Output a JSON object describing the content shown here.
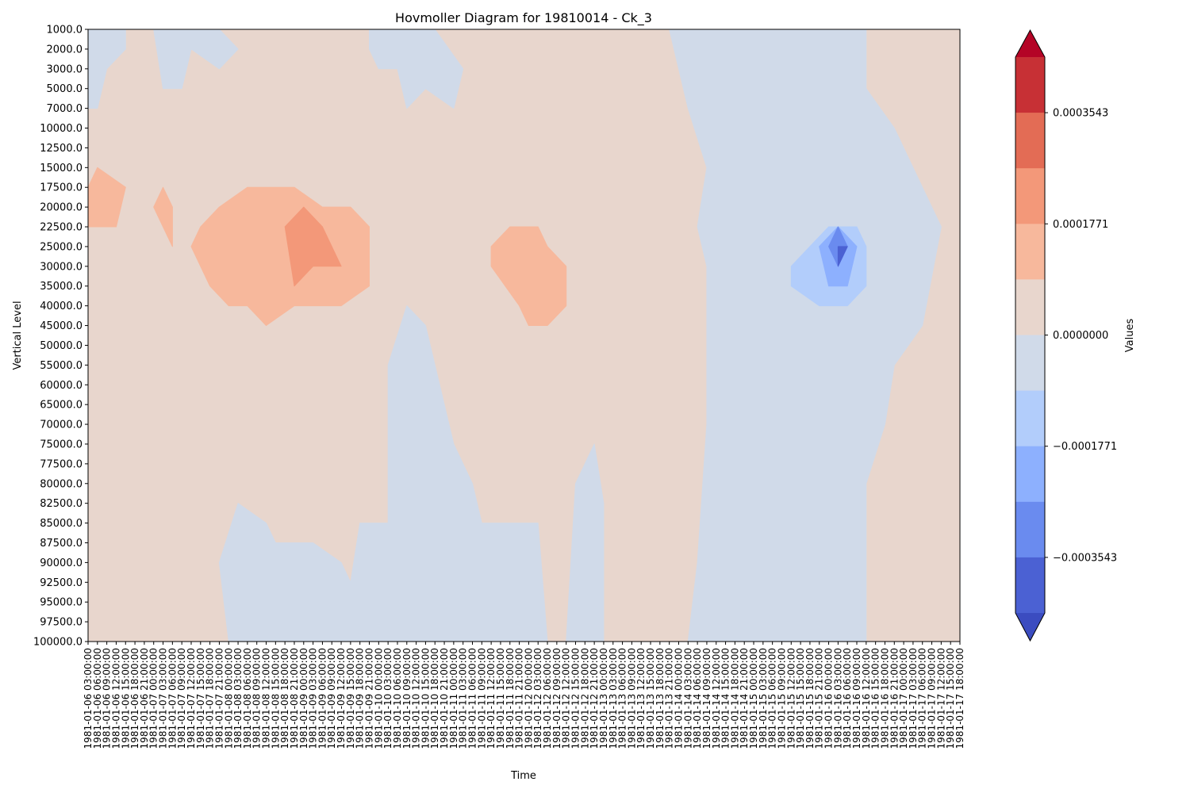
{
  "chart_data": {
    "type": "heatmap",
    "subtype": "filled-contour",
    "title": "Hovmoller Diagram for 19810014 - Ck_3",
    "xlabel": "Time",
    "ylabel": "Vertical Level",
    "y_inverted": true,
    "y_levels": [
      "1000.0",
      "2000.0",
      "3000.0",
      "5000.0",
      "7000.0",
      "10000.0",
      "12500.0",
      "15000.0",
      "17500.0",
      "20000.0",
      "22500.0",
      "25000.0",
      "30000.0",
      "35000.0",
      "40000.0",
      "45000.0",
      "50000.0",
      "55000.0",
      "60000.0",
      "65000.0",
      "70000.0",
      "75000.0",
      "77500.0",
      "80000.0",
      "82500.0",
      "85000.0",
      "87500.0",
      "90000.0",
      "92500.0",
      "95000.0",
      "97500.0",
      "100000.0"
    ],
    "x_time_labels": [
      "1981-01-06 03:00:00",
      "1981-01-06 06:00:00",
      "1981-01-06 09:00:00",
      "1981-01-06 12:00:00",
      "1981-01-06 15:00:00",
      "1981-01-06 18:00:00",
      "1981-01-06 21:00:00",
      "1981-01-07 00:00:00",
      "1981-01-07 03:00:00",
      "1981-01-07 06:00:00",
      "1981-01-07 09:00:00",
      "1981-01-07 12:00:00",
      "1981-01-07 15:00:00",
      "1981-01-07 18:00:00",
      "1981-01-07 21:00:00",
      "1981-01-08 00:00:00",
      "1981-01-08 03:00:00",
      "1981-01-08 06:00:00",
      "1981-01-08 09:00:00",
      "1981-01-08 12:00:00",
      "1981-01-08 15:00:00",
      "1981-01-08 18:00:00",
      "1981-01-08 21:00:00",
      "1981-01-09 00:00:00",
      "1981-01-09 03:00:00",
      "1981-01-09 06:00:00",
      "1981-01-09 09:00:00",
      "1981-01-09 12:00:00",
      "1981-01-09 15:00:00",
      "1981-01-09 18:00:00",
      "1981-01-09 21:00:00",
      "1981-01-10 00:00:00",
      "1981-01-10 03:00:00",
      "1981-01-10 06:00:00",
      "1981-01-10 09:00:00",
      "1981-01-10 12:00:00",
      "1981-01-10 15:00:00",
      "1981-01-10 18:00:00",
      "1981-01-10 21:00:00",
      "1981-01-11 00:00:00",
      "1981-01-11 03:00:00",
      "1981-01-11 06:00:00",
      "1981-01-11 09:00:00",
      "1981-01-11 12:00:00",
      "1981-01-11 15:00:00",
      "1981-01-11 18:00:00",
      "1981-01-11 21:00:00",
      "1981-01-12 00:00:00",
      "1981-01-12 03:00:00",
      "1981-01-12 06:00:00",
      "1981-01-12 09:00:00",
      "1981-01-12 12:00:00",
      "1981-01-12 15:00:00",
      "1981-01-12 18:00:00",
      "1981-01-12 21:00:00",
      "1981-01-13 00:00:00",
      "1981-01-13 03:00:00",
      "1981-01-13 06:00:00",
      "1981-01-13 09:00:00",
      "1981-01-13 12:00:00",
      "1981-01-13 15:00:00",
      "1981-01-13 18:00:00",
      "1981-01-13 21:00:00",
      "1981-01-14 00:00:00",
      "1981-01-14 03:00:00",
      "1981-01-14 06:00:00",
      "1981-01-14 09:00:00",
      "1981-01-14 12:00:00",
      "1981-01-14 15:00:00",
      "1981-01-14 18:00:00",
      "1981-01-14 21:00:00",
      "1981-01-15 00:00:00",
      "1981-01-15 03:00:00",
      "1981-01-15 06:00:00",
      "1981-01-15 09:00:00",
      "1981-01-15 12:00:00",
      "1981-01-15 15:00:00",
      "1981-01-15 18:00:00",
      "1981-01-15 21:00:00",
      "1981-01-16 00:00:00",
      "1981-01-16 03:00:00",
      "1981-01-16 06:00:00",
      "1981-01-16 09:00:00",
      "1981-01-16 12:00:00",
      "1981-01-16 15:00:00",
      "1981-01-16 18:00:00",
      "1981-01-16 21:00:00",
      "1981-01-17 00:00:00",
      "1981-01-17 03:00:00",
      "1981-01-17 06:00:00",
      "1981-01-17 09:00:00",
      "1981-01-17 12:00:00",
      "1981-01-17 15:00:00",
      "1981-01-17 18:00:00"
    ],
    "colorbar": {
      "label": "Values",
      "tick_labels": [
        "0.0003543",
        "0.0001771",
        "0.0000000",
        "−0.0001771",
        "−0.0003543"
      ],
      "tick_values": [
        0.0003543,
        0.0001771,
        0.0,
        -0.0001771,
        -0.0003543
      ],
      "extend": "both",
      "bands_top_to_bottom": [
        "#c73035",
        "#e36c55",
        "#f39879",
        "#f7b89c",
        "#e8d6cd",
        "#d0dae9",
        "#b2cdfb",
        "#8db0fe",
        "#6a8bef",
        "#4b61d3"
      ],
      "over_color": "#b40426",
      "under_color": "#3b4cc0"
    },
    "background_color": "#e8d6cd",
    "regions": [
      {
        "color": "#d0dae9",
        "desc": "negative weak, early upper levels",
        "points": [
          [
            "1981-01-06 03:00:00",
            "1000.0"
          ],
          [
            "1981-01-06 15:00:00",
            "1000.0"
          ],
          [
            "1981-01-06 15:00:00",
            "2000.0"
          ],
          [
            "1981-01-06 09:00:00",
            "3000.0"
          ],
          [
            "1981-01-06 06:00:00",
            "7000.0"
          ],
          [
            "1981-01-06 03:00:00",
            "7000.0"
          ]
        ]
      },
      {
        "color": "#d0dae9",
        "desc": "negative weak, 1981-01-07 upper",
        "points": [
          [
            "1981-01-07 00:00:00",
            "1000.0"
          ],
          [
            "1981-01-07 21:00:00",
            "1000.0"
          ],
          [
            "1981-01-08 03:00:00",
            "2000.0"
          ],
          [
            "1981-01-07 21:00:00",
            "3000.0"
          ],
          [
            "1981-01-07 12:00:00",
            "2000.0"
          ],
          [
            "1981-01-07 09:00:00",
            "5000.0"
          ],
          [
            "1981-01-07 03:00:00",
            "5000.0"
          ]
        ]
      },
      {
        "color": "#d0dae9",
        "desc": "negative weak, 1981-01-09/10 upper",
        "points": [
          [
            "1981-01-09 21:00:00",
            "1000.0"
          ],
          [
            "1981-01-10 18:00:00",
            "1000.0"
          ],
          [
            "1981-01-11 03:00:00",
            "3000.0"
          ],
          [
            "1981-01-11 00:00:00",
            "7000.0"
          ],
          [
            "1981-01-10 15:00:00",
            "5000.0"
          ],
          [
            "1981-01-10 09:00:00",
            "7000.0"
          ],
          [
            "1981-01-10 06:00:00",
            "3000.0"
          ],
          [
            "1981-01-10 00:00:00",
            "3000.0"
          ],
          [
            "1981-01-09 21:00:00",
            "2000.0"
          ]
        ]
      },
      {
        "color": "#d0dae9",
        "desc": "negative weak, 1981-01-14 to 1981-01-16 column",
        "points": [
          [
            "1981-01-13 21:00:00",
            "1000.0"
          ],
          [
            "1981-01-16 12:00:00",
            "1000.0"
          ],
          [
            "1981-01-16 12:00:00",
            "5000.0"
          ],
          [
            "1981-01-16 21:00:00",
            "10000.0"
          ],
          [
            "1981-01-17 06:00:00",
            "17500.0"
          ],
          [
            "1981-01-17 12:00:00",
            "22500.0"
          ],
          [
            "1981-01-17 06:00:00",
            "45000.0"
          ],
          [
            "1981-01-16 21:00:00",
            "55000.0"
          ],
          [
            "1981-01-16 18:00:00",
            "70000.0"
          ],
          [
            "1981-01-16 12:00:00",
            "80000.0"
          ],
          [
            "1981-01-16 12:00:00",
            "100000.0"
          ],
          [
            "1981-01-14 03:00:00",
            "100000.0"
          ],
          [
            "1981-01-14 06:00:00",
            "90000.0"
          ],
          [
            "1981-01-14 09:00:00",
            "70000.0"
          ],
          [
            "1981-01-14 09:00:00",
            "30000.0"
          ],
          [
            "1981-01-14 06:00:00",
            "22500.0"
          ],
          [
            "1981-01-14 09:00:00",
            "15000.0"
          ],
          [
            "1981-01-14 03:00:00",
            "7000.0"
          ],
          [
            "1981-01-14 00:00:00",
            "3000.0"
          ]
        ]
      },
      {
        "color": "#d0dae9",
        "desc": "negative weak, 1981-01-10 mid/lower column",
        "points": [
          [
            "1981-01-10 03:00:00",
            "55000.0"
          ],
          [
            "1981-01-10 09:00:00",
            "40000.0"
          ],
          [
            "1981-01-10 15:00:00",
            "45000.0"
          ],
          [
            "1981-01-11 00:00:00",
            "75000.0"
          ],
          [
            "1981-01-11 06:00:00",
            "80000.0"
          ],
          [
            "1981-01-11 09:00:00",
            "85000.0"
          ],
          [
            "1981-01-12 03:00:00",
            "85000.0"
          ],
          [
            "1981-01-12 06:00:00",
            "100000.0"
          ],
          [
            "1981-01-08 00:00:00",
            "100000.0"
          ],
          [
            "1981-01-07 21:00:00",
            "90000.0"
          ],
          [
            "1981-01-08 03:00:00",
            "82500.0"
          ],
          [
            "1981-01-08 12:00:00",
            "85000.0"
          ],
          [
            "1981-01-08 15:00:00",
            "87500.0"
          ],
          [
            "1981-01-09 03:00:00",
            "87500.0"
          ],
          [
            "1981-01-09 12:00:00",
            "90000.0"
          ],
          [
            "1981-01-09 15:00:00",
            "92500.0"
          ],
          [
            "1981-01-09 18:00:00",
            "85000.0"
          ],
          [
            "1981-01-10 03:00:00",
            "85000.0"
          ]
        ]
      },
      {
        "color": "#d0dae9",
        "desc": "negative weak, 1981-01-12/13 lower",
        "points": [
          [
            "1981-01-12 12:00:00",
            "100000.0"
          ],
          [
            "1981-01-12 15:00:00",
            "80000.0"
          ],
          [
            "1981-01-12 21:00:00",
            "75000.0"
          ],
          [
            "1981-01-13 00:00:00",
            "82500.0"
          ],
          [
            "1981-01-13 00:00:00",
            "100000.0"
          ]
        ]
      },
      {
        "color": "#f7b89c",
        "desc": "positive weak, left",
        "points": [
          [
            "1981-01-06 03:00:00",
            "17500.0"
          ],
          [
            "1981-01-06 06:00:00",
            "15000.0"
          ],
          [
            "1981-01-06 15:00:00",
            "17500.0"
          ],
          [
            "1981-01-06 12:00:00",
            "22500.0"
          ],
          [
            "1981-01-06 03:00:00",
            "22500.0"
          ]
        ]
      },
      {
        "color": "#f7b89c",
        "desc": "positive weak, 1981-01-07",
        "points": [
          [
            "1981-01-07 00:00:00",
            "20000.0"
          ],
          [
            "1981-01-07 03:00:00",
            "17500.0"
          ],
          [
            "1981-01-07 06:00:00",
            "20000.0"
          ],
          [
            "1981-01-07 06:00:00",
            "25000.0"
          ],
          [
            "1981-01-07 03:00:00",
            "22500.0"
          ]
        ]
      },
      {
        "color": "#f7b89c",
        "desc": "positive weak, 1981-01-08/09",
        "points": [
          [
            "1981-01-07 12:00:00",
            "25000.0"
          ],
          [
            "1981-01-07 15:00:00",
            "22500.0"
          ],
          [
            "1981-01-07 21:00:00",
            "20000.0"
          ],
          [
            "1981-01-08 06:00:00",
            "17500.0"
          ],
          [
            "1981-01-08 21:00:00",
            "17500.0"
          ],
          [
            "1981-01-09 06:00:00",
            "20000.0"
          ],
          [
            "1981-01-09 15:00:00",
            "20000.0"
          ],
          [
            "1981-01-09 21:00:00",
            "22500.0"
          ],
          [
            "1981-01-09 21:00:00",
            "35000.0"
          ],
          [
            "1981-01-09 12:00:00",
            "40000.0"
          ],
          [
            "1981-01-09 03:00:00",
            "40000.0"
          ],
          [
            "1981-01-08 21:00:00",
            "40000.0"
          ],
          [
            "1981-01-08 12:00:00",
            "45000.0"
          ],
          [
            "1981-01-08 06:00:00",
            "40000.0"
          ],
          [
            "1981-01-08 00:00:00",
            "40000.0"
          ],
          [
            "1981-01-07 18:00:00",
            "35000.0"
          ]
        ]
      },
      {
        "color": "#f39879",
        "desc": "positive moderate, 1981-01-08/09",
        "points": [
          [
            "1981-01-08 18:00:00",
            "22500.0"
          ],
          [
            "1981-01-09 00:00:00",
            "20000.0"
          ],
          [
            "1981-01-09 06:00:00",
            "22500.0"
          ],
          [
            "1981-01-09 12:00:00",
            "30000.0"
          ],
          [
            "1981-01-09 03:00:00",
            "30000.0"
          ],
          [
            "1981-01-08 21:00:00",
            "35000.0"
          ]
        ]
      },
      {
        "color": "#f7b89c",
        "desc": "positive weak, 1981-01-11/12",
        "points": [
          [
            "1981-01-11 12:00:00",
            "25000.0"
          ],
          [
            "1981-01-11 18:00:00",
            "22500.0"
          ],
          [
            "1981-01-12 03:00:00",
            "22500.0"
          ],
          [
            "1981-01-12 06:00:00",
            "25000.0"
          ],
          [
            "1981-01-12 12:00:00",
            "30000.0"
          ],
          [
            "1981-01-12 12:00:00",
            "40000.0"
          ],
          [
            "1981-01-12 06:00:00",
            "45000.0"
          ],
          [
            "1981-01-12 00:00:00",
            "45000.0"
          ],
          [
            "1981-01-11 21:00:00",
            "40000.0"
          ],
          [
            "1981-01-11 12:00:00",
            "30000.0"
          ]
        ]
      },
      {
        "color": "#b2cdfb",
        "desc": "negative level 2, 1981-01-15/16",
        "points": [
          [
            "1981-01-15 12:00:00",
            "30000.0"
          ],
          [
            "1981-01-15 18:00:00",
            "25000.0"
          ],
          [
            "1981-01-16 00:00:00",
            "22500.0"
          ],
          [
            "1981-01-16 09:00:00",
            "22500.0"
          ],
          [
            "1981-01-16 12:00:00",
            "25000.0"
          ],
          [
            "1981-01-16 12:00:00",
            "35000.0"
          ],
          [
            "1981-01-16 06:00:00",
            "40000.0"
          ],
          [
            "1981-01-15 21:00:00",
            "40000.0"
          ],
          [
            "1981-01-15 12:00:00",
            "35000.0"
          ]
        ]
      },
      {
        "color": "#8db0fe",
        "desc": "negative level 3",
        "points": [
          [
            "1981-01-15 21:00:00",
            "25000.0"
          ],
          [
            "1981-01-16 03:00:00",
            "22500.0"
          ],
          [
            "1981-01-16 09:00:00",
            "25000.0"
          ],
          [
            "1981-01-16 06:00:00",
            "35000.0"
          ],
          [
            "1981-01-16 00:00:00",
            "35000.0"
          ]
        ]
      },
      {
        "color": "#6a8bef",
        "desc": "negative level 4",
        "points": [
          [
            "1981-01-16 00:00:00",
            "25000.0"
          ],
          [
            "1981-01-16 03:00:00",
            "22500.0"
          ],
          [
            "1981-01-16 06:00:00",
            "25000.0"
          ],
          [
            "1981-01-16 03:00:00",
            "30000.0"
          ]
        ]
      },
      {
        "color": "#4b61d3",
        "desc": "negative level 5",
        "points": [
          [
            "1981-01-16 03:00:00",
            "25000.0"
          ],
          [
            "1981-01-16 06:00:00",
            "25000.0"
          ],
          [
            "1981-01-16 03:00:00",
            "30000.0"
          ]
        ]
      }
    ]
  }
}
